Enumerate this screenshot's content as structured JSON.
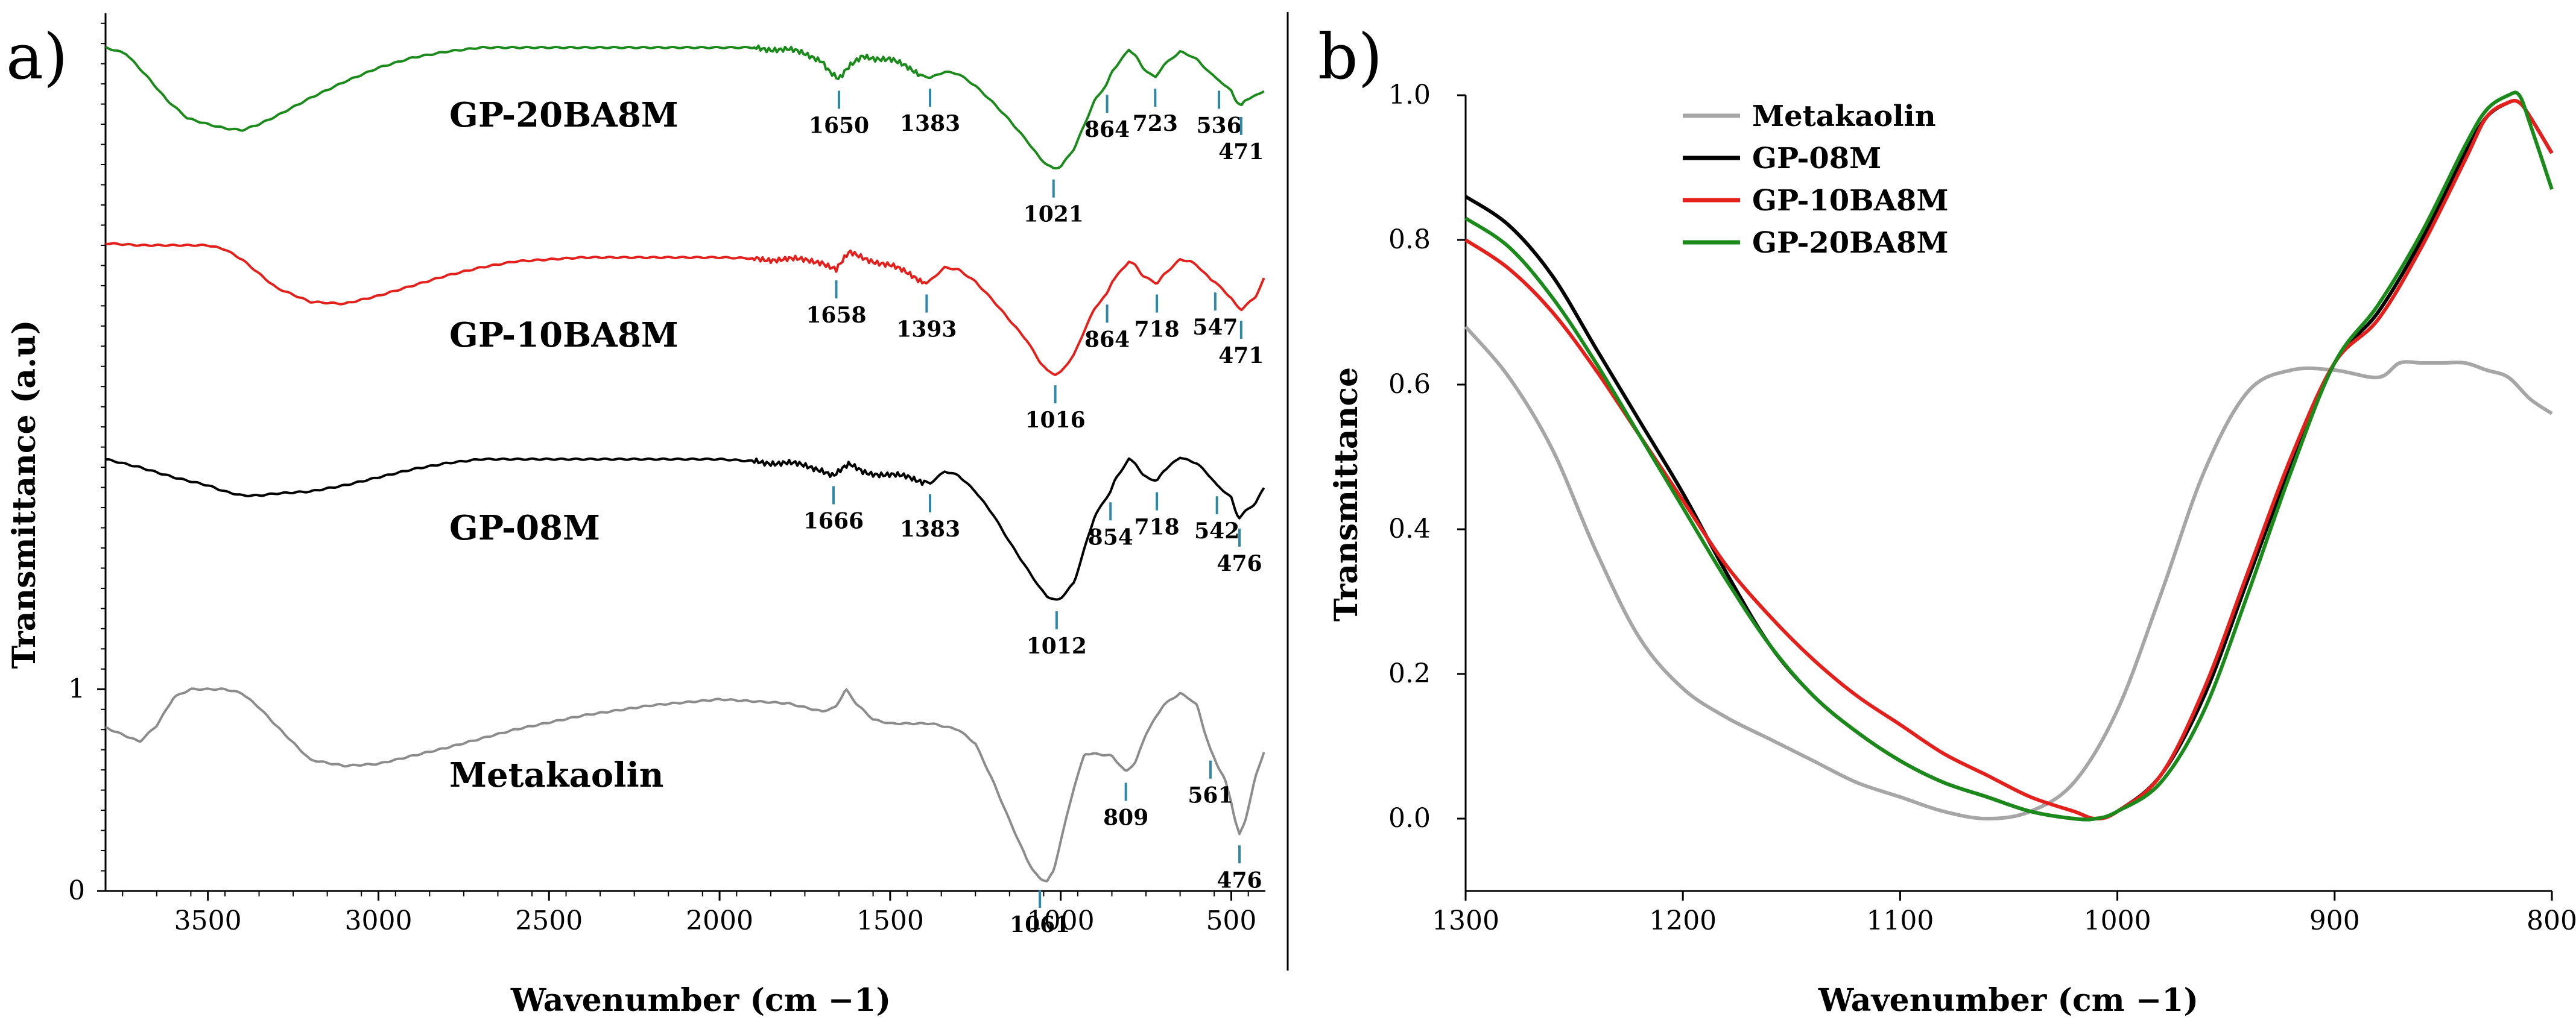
{
  "chart_data": [
    {
      "panel_label": "a)",
      "type": "line",
      "xlabel": "Wavenumber (cm −1)",
      "ylabel": "Transmittance (a.u)",
      "xlim": [
        3800,
        400
      ],
      "x_ticks": [
        "3500",
        "3000",
        "2500",
        "2000",
        "1500",
        "1000",
        "500"
      ],
      "y_ticks": [
        "0",
        "1"
      ],
      "ylim": [
        0,
        4.35
      ],
      "series": [
        {
          "name": "GP-20BA8M",
          "color": "#1a8a1a",
          "offset": 3.0,
          "x": [
            3800,
            3740,
            3680,
            3620,
            3560,
            3500,
            3450,
            3400,
            3350,
            3300,
            3200,
            3100,
            3000,
            2900,
            2800,
            2700,
            2600,
            2400,
            2200,
            2000,
            1900,
            1800,
            1700,
            1680,
            1650,
            1620,
            1580,
            1500,
            1450,
            1400,
            1383,
            1340,
            1300,
            1250,
            1200,
            1150,
            1100,
            1060,
            1040,
            1021,
            1000,
            960,
            930,
            900,
            864,
            850,
            800,
            780,
            760,
            723,
            700,
            650,
            620,
            600,
            560,
            536,
            520,
            500,
            485,
            471,
            460,
            430,
            400
          ],
          "y": [
            1.18,
            1.15,
            1.04,
            0.92,
            0.83,
            0.8,
            0.78,
            0.77,
            0.8,
            0.84,
            0.93,
            1.01,
            1.08,
            1.13,
            1.16,
            1.18,
            1.18,
            1.18,
            1.18,
            1.18,
            1.18,
            1.17,
            1.12,
            1.07,
            1.02,
            1.08,
            1.14,
            1.12,
            1.08,
            1.04,
            1.03,
            1.06,
            1.05,
            0.99,
            0.91,
            0.82,
            0.72,
            0.63,
            0.6,
            0.58,
            0.59,
            0.68,
            0.8,
            0.92,
            1.0,
            1.06,
            1.17,
            1.14,
            1.08,
            1.03,
            1.09,
            1.16,
            1.14,
            1.12,
            1.05,
            1.02,
            0.99,
            0.97,
            0.91,
            0.89,
            0.92,
            0.94,
            0.97
          ]
        },
        {
          "name": "GP-10BA8M",
          "color": "#e3201b",
          "offset": 2.0,
          "x": [
            3800,
            3700,
            3600,
            3500,
            3450,
            3400,
            3350,
            3300,
            3200,
            3100,
            3000,
            2900,
            2800,
            2700,
            2600,
            2400,
            2200,
            2000,
            1800,
            1700,
            1658,
            1620,
            1580,
            1500,
            1450,
            1400,
            1393,
            1340,
            1300,
            1250,
            1200,
            1150,
            1100,
            1060,
            1040,
            1016,
            1000,
            960,
            930,
            900,
            864,
            850,
            800,
            780,
            760,
            718,
            700,
            650,
            620,
            600,
            560,
            547,
            520,
            500,
            485,
            471,
            460,
            430,
            400
          ],
          "y": [
            1.21,
            1.2,
            1.2,
            1.2,
            1.18,
            1.13,
            1.06,
            0.99,
            0.92,
            0.91,
            0.95,
            1.0,
            1.05,
            1.09,
            1.12,
            1.14,
            1.14,
            1.14,
            1.13,
            1.12,
            1.08,
            1.16,
            1.14,
            1.1,
            1.06,
            1.02,
            1.01,
            1.09,
            1.08,
            1.02,
            0.93,
            0.83,
            0.73,
            0.62,
            0.58,
            0.56,
            0.57,
            0.66,
            0.78,
            0.89,
            0.96,
            1.02,
            1.12,
            1.1,
            1.05,
            1.01,
            1.05,
            1.13,
            1.12,
            1.1,
            1.03,
            1.02,
            0.97,
            0.94,
            0.9,
            0.88,
            0.9,
            0.94,
            1.05
          ]
        },
        {
          "name": "GP-08M",
          "color": "#000000",
          "offset": 1.0,
          "x": [
            3800,
            3700,
            3600,
            3500,
            3450,
            3400,
            3350,
            3300,
            3200,
            3100,
            3000,
            2900,
            2800,
            2700,
            2600,
            2400,
            2200,
            2000,
            1800,
            1700,
            1666,
            1620,
            1580,
            1500,
            1450,
            1400,
            1383,
            1340,
            1300,
            1250,
            1200,
            1150,
            1100,
            1060,
            1040,
            1012,
            1000,
            960,
            930,
            900,
            854,
            840,
            800,
            780,
            760,
            718,
            700,
            650,
            620,
            600,
            560,
            542,
            520,
            500,
            485,
            476,
            460,
            430,
            400
          ],
          "y": [
            1.14,
            1.1,
            1.05,
            1.01,
            0.98,
            0.96,
            0.96,
            0.97,
            0.98,
            1.01,
            1.05,
            1.09,
            1.12,
            1.14,
            1.14,
            1.14,
            1.14,
            1.14,
            1.12,
            1.09,
            1.06,
            1.11,
            1.08,
            1.06,
            1.05,
            1.03,
            1.02,
            1.08,
            1.06,
            0.98,
            0.87,
            0.73,
            0.6,
            0.5,
            0.46,
            0.44,
            0.45,
            0.53,
            0.7,
            0.86,
            0.98,
            1.04,
            1.14,
            1.12,
            1.06,
            1.03,
            1.08,
            1.15,
            1.13,
            1.12,
            1.05,
            1.01,
            0.98,
            0.95,
            0.87,
            0.85,
            0.88,
            0.92,
            1.01
          ]
        },
        {
          "name": "Metakaolin",
          "color": "#8c8c8c",
          "offset": 0.0,
          "x": [
            3800,
            3700,
            3650,
            3600,
            3550,
            3500,
            3450,
            3400,
            3350,
            3300,
            3200,
            3100,
            3000,
            2800,
            2600,
            2400,
            2200,
            2000,
            1800,
            1700,
            1660,
            1630,
            1600,
            1550,
            1500,
            1450,
            1400,
            1380,
            1300,
            1250,
            1200,
            1150,
            1100,
            1080,
            1061,
            1040,
            1020,
            1000,
            960,
            930,
            900,
            850,
            809,
            780,
            750,
            700,
            650,
            620,
            600,
            580,
            561,
            540,
            520,
            500,
            490,
            476,
            460,
            430,
            400
          ],
          "y": [
            0.81,
            0.74,
            0.82,
            0.96,
            1.0,
            1.0,
            1.0,
            0.98,
            0.91,
            0.82,
            0.65,
            0.62,
            0.63,
            0.71,
            0.8,
            0.87,
            0.92,
            0.95,
            0.93,
            0.89,
            0.91,
            1.0,
            0.93,
            0.85,
            0.83,
            0.83,
            0.83,
            0.83,
            0.8,
            0.73,
            0.55,
            0.35,
            0.16,
            0.1,
            0.06,
            0.05,
            0.1,
            0.25,
            0.52,
            0.68,
            0.68,
            0.67,
            0.59,
            0.64,
            0.78,
            0.92,
            0.98,
            0.95,
            0.92,
            0.8,
            0.7,
            0.62,
            0.56,
            0.44,
            0.36,
            0.28,
            0.34,
            0.56,
            0.71
          ]
        }
      ],
      "peak_markers": {
        "GP-20BA8M": [
          "1650",
          "1383",
          "864",
          "723",
          "536",
          "471",
          "1021"
        ],
        "GP-10BA8M": [
          "1658",
          "1393",
          "864",
          "718",
          "547",
          "471",
          "1016"
        ],
        "GP-08M": [
          "1666",
          "1383",
          "854",
          "718",
          "542",
          "476",
          "1012"
        ],
        "Metakaolin": [
          "1061",
          "809",
          "561",
          "476"
        ]
      }
    },
    {
      "panel_label": "b)",
      "type": "line",
      "xlabel": "Wavenumber (cm −1)",
      "ylabel": "Transmittance",
      "xlim": [
        1300,
        800
      ],
      "ylim": [
        -0.1,
        1.0
      ],
      "x_ticks": [
        "1300",
        "1200",
        "1100",
        "1000",
        "900",
        "800"
      ],
      "y_ticks": [
        "0.0",
        "0.2",
        "0.4",
        "0.6",
        "0.8",
        "1.0"
      ],
      "legend_position": "top-left",
      "series": [
        {
          "name": "Metakaolin",
          "color": "#a6a6a6",
          "x": [
            1300,
            1280,
            1260,
            1240,
            1220,
            1200,
            1180,
            1160,
            1140,
            1120,
            1100,
            1080,
            1060,
            1040,
            1020,
            1000,
            980,
            960,
            940,
            920,
            900,
            880,
            870,
            860,
            850,
            840,
            830,
            820,
            810,
            800
          ],
          "y": [
            0.68,
            0.61,
            0.51,
            0.37,
            0.25,
            0.18,
            0.14,
            0.11,
            0.08,
            0.05,
            0.03,
            0.01,
            0.0,
            0.01,
            0.05,
            0.15,
            0.31,
            0.48,
            0.59,
            0.62,
            0.62,
            0.61,
            0.63,
            0.63,
            0.63,
            0.63,
            0.62,
            0.61,
            0.58,
            0.56
          ]
        },
        {
          "name": "GP-08M",
          "color": "#000000",
          "x": [
            1300,
            1280,
            1260,
            1240,
            1220,
            1200,
            1180,
            1160,
            1140,
            1120,
            1100,
            1080,
            1060,
            1040,
            1020,
            1010,
            1000,
            980,
            960,
            940,
            920,
            900,
            880,
            860,
            840,
            830,
            820,
            815,
            810,
            800
          ],
          "y": [
            0.86,
            0.82,
            0.75,
            0.65,
            0.55,
            0.45,
            0.34,
            0.24,
            0.17,
            0.12,
            0.08,
            0.05,
            0.03,
            0.01,
            0.0,
            0.0,
            0.01,
            0.06,
            0.17,
            0.33,
            0.49,
            0.63,
            0.7,
            0.8,
            0.92,
            0.97,
            0.99,
            0.99,
            0.97,
            0.92
          ]
        },
        {
          "name": "GP-10BA8M",
          "color": "#e3201b",
          "x": [
            1300,
            1280,
            1260,
            1240,
            1220,
            1200,
            1180,
            1160,
            1140,
            1120,
            1100,
            1080,
            1060,
            1040,
            1020,
            1010,
            1000,
            980,
            960,
            940,
            920,
            900,
            880,
            860,
            840,
            830,
            820,
            815,
            810,
            800
          ],
          "y": [
            0.8,
            0.76,
            0.7,
            0.62,
            0.53,
            0.44,
            0.35,
            0.28,
            0.22,
            0.17,
            0.13,
            0.09,
            0.06,
            0.03,
            0.01,
            0.0,
            0.01,
            0.06,
            0.18,
            0.34,
            0.5,
            0.63,
            0.69,
            0.79,
            0.91,
            0.97,
            0.99,
            0.99,
            0.97,
            0.92
          ]
        },
        {
          "name": "GP-20BA8M",
          "color": "#1a8a1a",
          "x": [
            1300,
            1280,
            1260,
            1240,
            1220,
            1200,
            1180,
            1160,
            1140,
            1120,
            1100,
            1080,
            1060,
            1040,
            1020,
            1010,
            1000,
            980,
            960,
            940,
            920,
            900,
            880,
            860,
            840,
            830,
            820,
            815,
            810,
            800
          ],
          "y": [
            0.83,
            0.79,
            0.72,
            0.63,
            0.53,
            0.43,
            0.33,
            0.24,
            0.17,
            0.12,
            0.08,
            0.05,
            0.03,
            0.01,
            0.0,
            0.0,
            0.01,
            0.05,
            0.15,
            0.31,
            0.48,
            0.63,
            0.71,
            0.81,
            0.93,
            0.98,
            1.0,
            1.0,
            0.96,
            0.87
          ]
        }
      ]
    }
  ]
}
